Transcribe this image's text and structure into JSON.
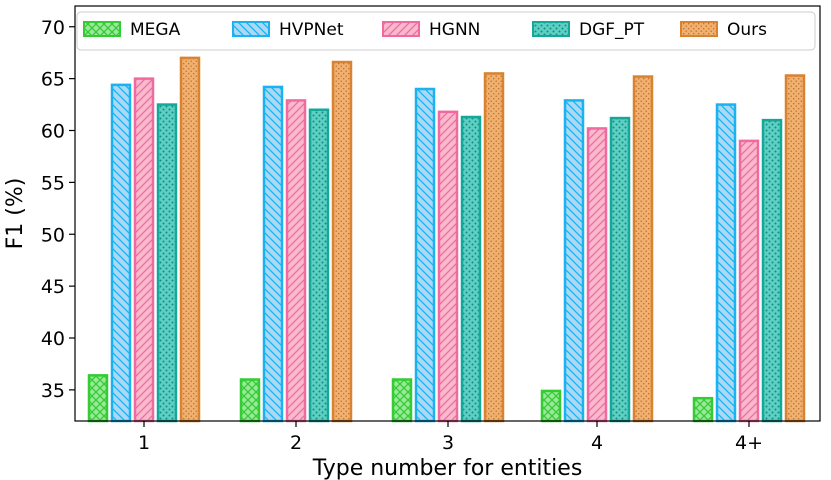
{
  "chart_data": {
    "type": "bar",
    "title": "",
    "xlabel": "Type number for entities",
    "ylabel": "F1 (%)",
    "ylim": [
      32,
      72
    ],
    "yticks": [
      35,
      40,
      45,
      50,
      55,
      60,
      65,
      70
    ],
    "categories": [
      "1",
      "2",
      "3",
      "4",
      "4+"
    ],
    "legend_position": "top",
    "series": [
      {
        "name": "MEGA",
        "values": [
          36.4,
          36.0,
          36.0,
          34.9,
          34.2
        ],
        "fill": "#9be89b",
        "edge": "#33cc33",
        "pattern": "crosshatch"
      },
      {
        "name": "HVPNet",
        "values": [
          64.4,
          64.2,
          64.0,
          62.9,
          62.5
        ],
        "fill": "#a9d9f5",
        "edge": "#1ab2f0",
        "pattern": "backslash"
      },
      {
        "name": "HGNN",
        "values": [
          65.0,
          62.9,
          61.8,
          60.2,
          59.0
        ],
        "fill": "#f9b9cc",
        "edge": "#f06aa0",
        "pattern": "slash"
      },
      {
        "name": "DGF_PT",
        "values": [
          62.5,
          62.0,
          61.3,
          61.2,
          61.0
        ],
        "fill": "#5ecfc2",
        "edge": "#14a89a",
        "pattern": "dots"
      },
      {
        "name": "Ours",
        "values": [
          67.0,
          66.6,
          65.5,
          65.2,
          65.3
        ],
        "fill": "#f0b070",
        "edge": "#d9822f",
        "pattern": "dense-dots"
      }
    ]
  }
}
